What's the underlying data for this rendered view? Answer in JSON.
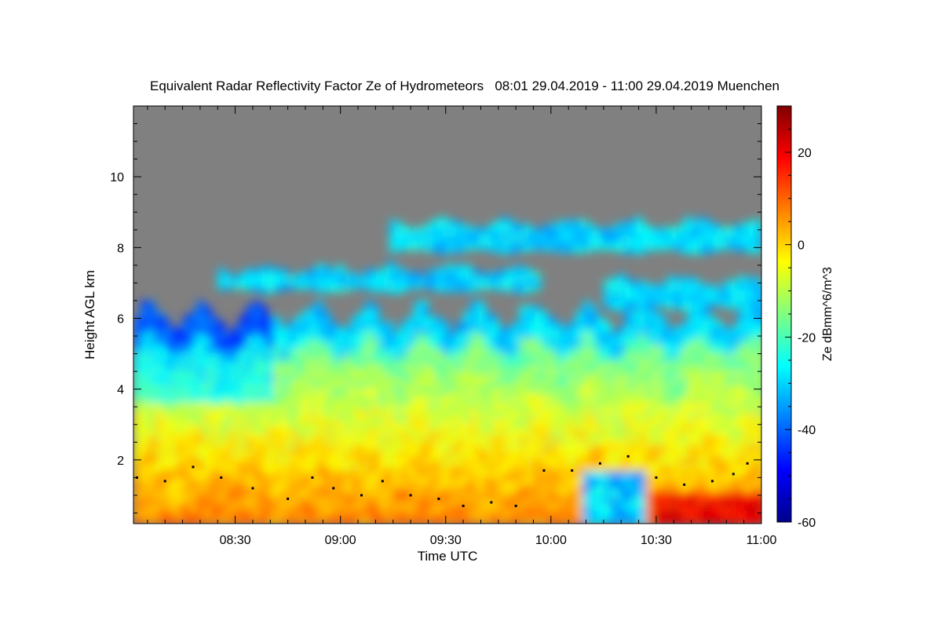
{
  "chart_data": {
    "type": "heatmap",
    "title": "Equivalent Radar Reflectivity Factor Ze of Hydrometeors   08:01 29.04.2019 - 11:00 29.04.2019 Muenchen",
    "xlabel": "Time UTC",
    "ylabel": "Height AGL km",
    "x_ticks": [
      "08:30",
      "09:00",
      "09:30",
      "10:00",
      "10:30",
      "11:00"
    ],
    "x_tick_minutes": [
      30,
      60,
      90,
      120,
      150,
      180
    ],
    "xlim_minutes": [
      1,
      180
    ],
    "y_ticks": [
      2,
      4,
      6,
      8,
      10
    ],
    "ylim": [
      0.2,
      12.0
    ],
    "colorbar": {
      "label": "Ze dBmm^6/m^3",
      "ticks": [
        -60,
        -40,
        -20,
        0,
        20
      ],
      "range": [
        -60,
        30
      ],
      "colors": [
        "#00008c",
        "#0000ff",
        "#0080ff",
        "#00ffff",
        "#80ff80",
        "#ffff00",
        "#ff8000",
        "#ff0000",
        "#800000"
      ]
    },
    "no_signal_color": "#808080",
    "cloud_layers": [
      {
        "t_start": 1,
        "t_end": 180,
        "h_base": 0.2,
        "h_top": 6.0,
        "ze_typical": -10
      },
      {
        "t_start": 25,
        "t_end": 116,
        "h_base": 6.8,
        "h_top": 7.3,
        "ze_typical": -30
      },
      {
        "t_start": 74,
        "t_end": 180,
        "h_base": 7.9,
        "h_top": 8.6,
        "ze_typical": -30
      },
      {
        "t_start": 135,
        "t_end": 180,
        "h_base": 6.3,
        "h_top": 7.0,
        "ze_typical": -30
      }
    ],
    "cloud_base": [
      {
        "t": 2,
        "h": 1.5
      },
      {
        "t": 10,
        "h": 1.4
      },
      {
        "t": 18,
        "h": 1.8
      },
      {
        "t": 26,
        "h": 1.5
      },
      {
        "t": 35,
        "h": 1.2
      },
      {
        "t": 45,
        "h": 0.9
      },
      {
        "t": 52,
        "h": 1.5
      },
      {
        "t": 58,
        "h": 1.2
      },
      {
        "t": 66,
        "h": 1.0
      },
      {
        "t": 72,
        "h": 1.4
      },
      {
        "t": 80,
        "h": 1.0
      },
      {
        "t": 88,
        "h": 0.9
      },
      {
        "t": 95,
        "h": 0.7
      },
      {
        "t": 103,
        "h": 0.8
      },
      {
        "t": 110,
        "h": 0.7
      },
      {
        "t": 118,
        "h": 1.7
      },
      {
        "t": 126,
        "h": 1.7
      },
      {
        "t": 134,
        "h": 1.9
      },
      {
        "t": 142,
        "h": 2.1
      },
      {
        "t": 150,
        "h": 1.5
      },
      {
        "t": 158,
        "h": 1.3
      },
      {
        "t": 166,
        "h": 1.4
      },
      {
        "t": 172,
        "h": 1.6
      },
      {
        "t": 176,
        "h": 1.9
      }
    ]
  }
}
